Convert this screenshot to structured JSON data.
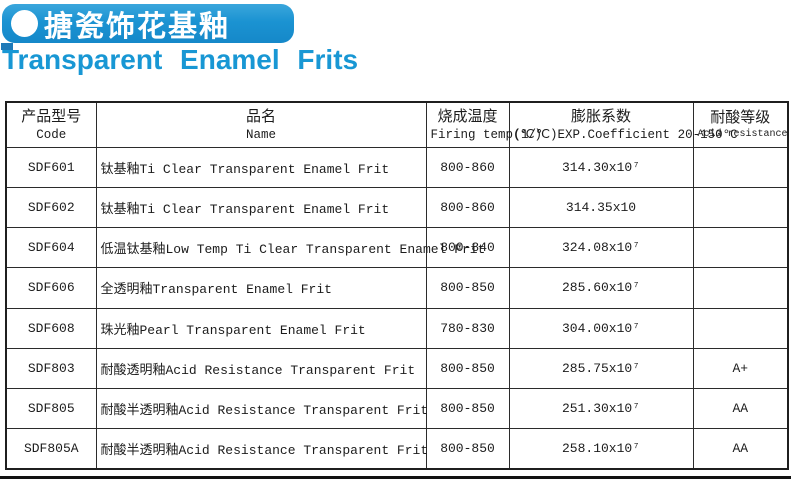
{
  "header": {
    "banner_title_zh": "搪瓷饰花基釉",
    "title_en": "Transparent Enamel Frits",
    "banner_color": "#1b93d2",
    "title_color": "#1897d4"
  },
  "table": {
    "columns": [
      {
        "zh": "产品型号",
        "en": "Code"
      },
      {
        "zh": "品名",
        "en": "Name"
      },
      {
        "zh": "烧成温度",
        "en": "Firing temp(℃)"
      },
      {
        "zh": "膨胀系数",
        "en": "(1/℃)EXP.Coefficient 20-150°C"
      },
      {
        "zh": "耐酸等级",
        "en": "Acid resistance grade"
      }
    ],
    "rows": [
      {
        "code": "SDF601",
        "name": "钛基釉Ti Clear Transparent Enamel Frit",
        "firing_temp": "800-860",
        "coefficient": "314.30x10⁷",
        "acid_grade": ""
      },
      {
        "code": "SDF602",
        "name": "钛基釉Ti Clear Transparent Enamel Frit",
        "firing_temp": "800-860",
        "coefficient": "314.35x10",
        "acid_grade": ""
      },
      {
        "code": "SDF604",
        "name": "低温钛基釉Low Temp Ti Clear Transparent Enamel Frit",
        "firing_temp": "800-840",
        "coefficient": "324.08x10⁷",
        "acid_grade": ""
      },
      {
        "code": "SDF606",
        "name": "全透明釉Transparent Enamel Frit",
        "firing_temp": "800-850",
        "coefficient": "285.60x10⁷",
        "acid_grade": ""
      },
      {
        "code": "SDF608",
        "name": "珠光釉Pearl Transparent Enamel Frit",
        "firing_temp": "780-830",
        "coefficient": "304.00x10⁷",
        "acid_grade": ""
      },
      {
        "code": "SDF803",
        "name": "耐酸透明釉Acid Resistance Transparent Frit",
        "firing_temp": "800-850",
        "coefficient": "285.75x10⁷",
        "acid_grade": "A+"
      },
      {
        "code": "SDF805",
        "name": "耐酸半透明釉Acid Resistance Transparent Frit",
        "firing_temp": "800-850",
        "coefficient": "251.30x10⁷",
        "acid_grade": "AA"
      },
      {
        "code": "SDF805A",
        "name": "耐酸半透明釉Acid Resistance Transparent Frit",
        "firing_temp": "800-850",
        "coefficient": "258.10x10⁷",
        "acid_grade": "AA"
      }
    ]
  }
}
